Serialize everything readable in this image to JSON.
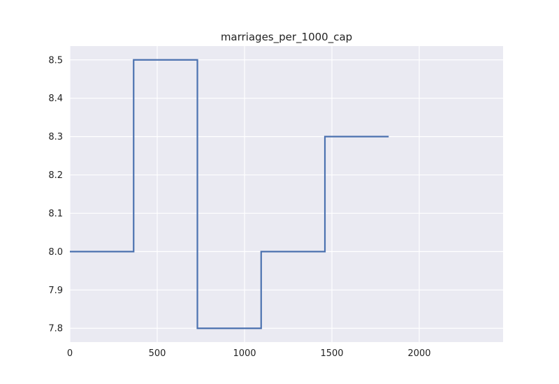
{
  "chart_data": {
    "type": "line",
    "title": "marriages_per_1000_cap",
    "xlabel": "",
    "ylabel": "",
    "drawstyle": "steps-post",
    "xlim": [
      0,
      2480
    ],
    "ylim": [
      7.764,
      8.536
    ],
    "xticks": [
      0,
      500,
      1000,
      1500,
      2000
    ],
    "yticks": [
      7.8,
      7.9,
      8.0,
      8.1,
      8.2,
      8.3,
      8.4,
      8.5
    ],
    "xtick_labels": [
      "0",
      "500",
      "1000",
      "1500",
      "2000"
    ],
    "ytick_labels": [
      "7.8",
      "7.9",
      "8.0",
      "8.1",
      "8.2",
      "8.3",
      "8.4",
      "8.5"
    ],
    "grid": true,
    "series": [
      {
        "x": [
          0,
          365,
          730,
          1095,
          1460,
          1825
        ],
        "y": [
          8.0,
          8.5,
          7.8,
          8.0,
          8.3,
          8.3
        ]
      }
    ]
  },
  "colors": {
    "background": "#eaeaf2",
    "grid": "#ffffff",
    "line": "#4c72b0",
    "text": "#222222"
  }
}
